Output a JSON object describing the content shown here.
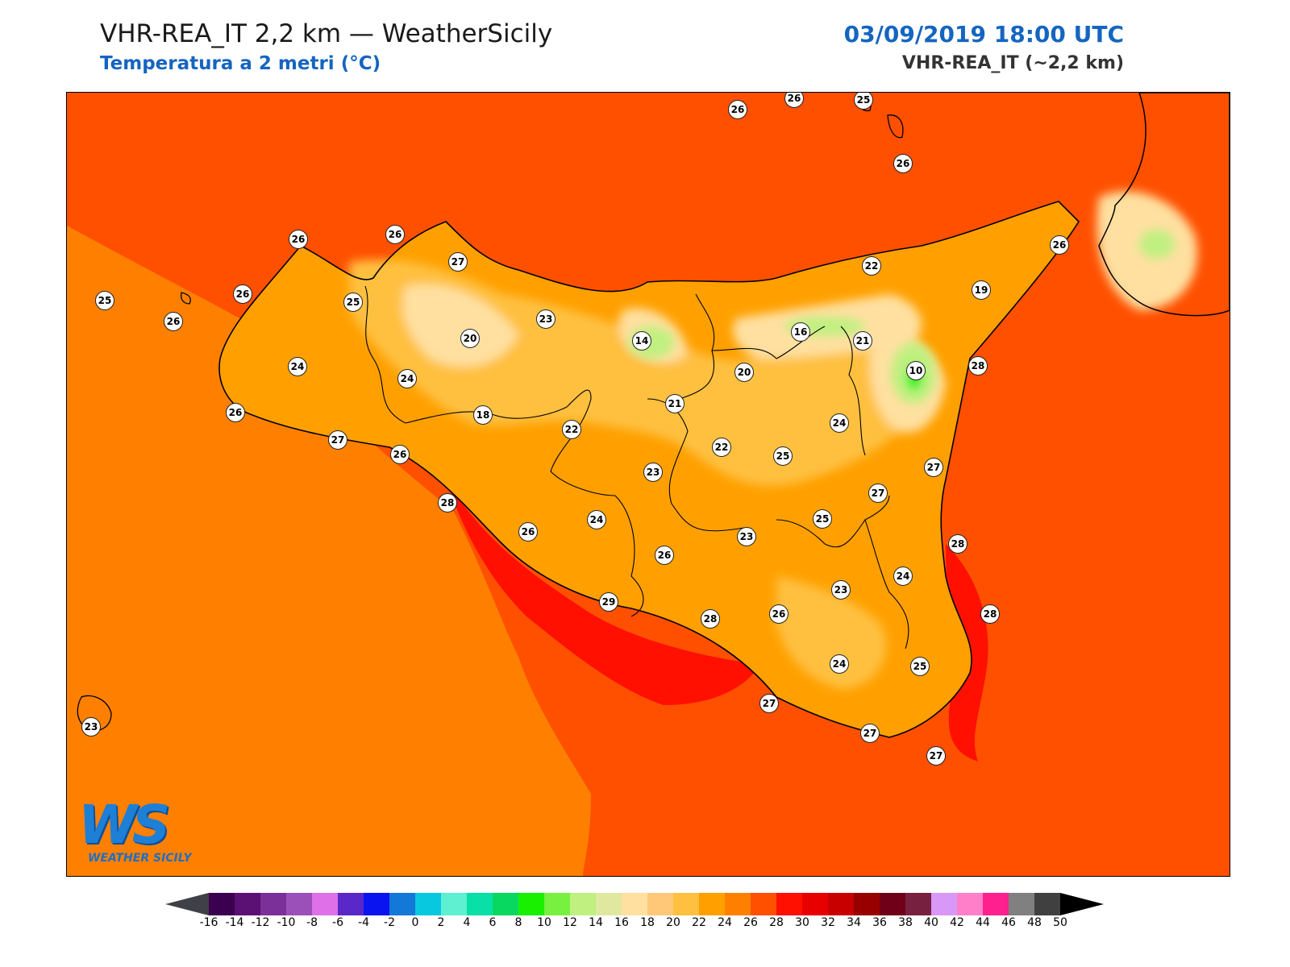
{
  "header": {
    "title": "VHR-REA_IT 2,2 km — WeatherSicily",
    "subtitle": "Temperatura a 2 metri (°C)",
    "datetime": "03/09/2019 18:00 UTC",
    "model": "VHR-REA_IT (~2,2 km)"
  },
  "logo": {
    "mark": "WS",
    "name": "WEATHER SICILY"
  },
  "stations": [
    {
      "value": "26"
    },
    {
      "value": "26"
    },
    {
      "value": "25"
    },
    {
      "value": "26"
    },
    {
      "value": "26"
    },
    {
      "value": "26"
    },
    {
      "value": "27"
    },
    {
      "value": "25"
    },
    {
      "value": "26"
    },
    {
      "value": "25"
    },
    {
      "value": "26"
    },
    {
      "value": "22"
    },
    {
      "value": "19"
    },
    {
      "value": "26"
    },
    {
      "value": "20"
    },
    {
      "value": "23"
    },
    {
      "value": "14"
    },
    {
      "value": "16"
    },
    {
      "value": "21"
    },
    {
      "value": "24"
    },
    {
      "value": "24"
    },
    {
      "value": "10"
    },
    {
      "value": "28"
    },
    {
      "value": "20"
    },
    {
      "value": "26"
    },
    {
      "value": "18"
    },
    {
      "value": "21"
    },
    {
      "value": "22"
    },
    {
      "value": "22"
    },
    {
      "value": "24"
    },
    {
      "value": "27"
    },
    {
      "value": "26"
    },
    {
      "value": "25"
    },
    {
      "value": "27"
    },
    {
      "value": "23"
    },
    {
      "value": "27"
    },
    {
      "value": "28"
    },
    {
      "value": "24"
    },
    {
      "value": "26"
    },
    {
      "value": "25"
    },
    {
      "value": "26"
    },
    {
      "value": "23"
    },
    {
      "value": "28"
    },
    {
      "value": "24"
    },
    {
      "value": "29"
    },
    {
      "value": "28"
    },
    {
      "value": "26"
    },
    {
      "value": "23"
    },
    {
      "value": "28"
    },
    {
      "value": "24"
    },
    {
      "value": "25"
    },
    {
      "value": "27"
    },
    {
      "value": "23"
    },
    {
      "value": "27"
    },
    {
      "value": "27"
    }
  ],
  "colorbar": {
    "unit": "°C",
    "ticks": [
      "-16",
      "-14",
      "-12",
      "-10",
      "-8",
      "-6",
      "-4",
      "-2",
      "0",
      "2",
      "4",
      "6",
      "8",
      "10",
      "12",
      "14",
      "16",
      "18",
      "20",
      "22",
      "24",
      "26",
      "28",
      "30",
      "32",
      "34",
      "36",
      "38",
      "40",
      "42",
      "44",
      "46",
      "48",
      "50"
    ],
    "colors": [
      "#3b0050",
      "#5b1073",
      "#7b2f98",
      "#9b4fb8",
      "#e070e8",
      "#5a28c8",
      "#0a14f0",
      "#1478d8",
      "#08c8e0",
      "#5ef0d0",
      "#08e0a8",
      "#08d860",
      "#18f000",
      "#78f040",
      "#c0f080",
      "#e0e8a0",
      "#ffe0a0",
      "#ffc878",
      "#ffc040",
      "#ffa000",
      "#ff8000",
      "#ff5000",
      "#ff1000",
      "#e80000",
      "#c80000",
      "#980000",
      "#700018",
      "#782040",
      "#d898f8",
      "#ff80c8",
      "#ff2090",
      "#808080",
      "#404040"
    ],
    "under_color": "#404048",
    "over_color": "#000000"
  },
  "colors": {
    "sea": "#ff8000",
    "sea_warm": "#ff5000",
    "coast_hot": "#ff1000",
    "land_interior": "#ffa000",
    "land_high": "#ffc040",
    "land_higher": "#ffe0a0",
    "mountain": "#c0f080",
    "etna_peak": "#18f000",
    "coastline": "#000000"
  }
}
